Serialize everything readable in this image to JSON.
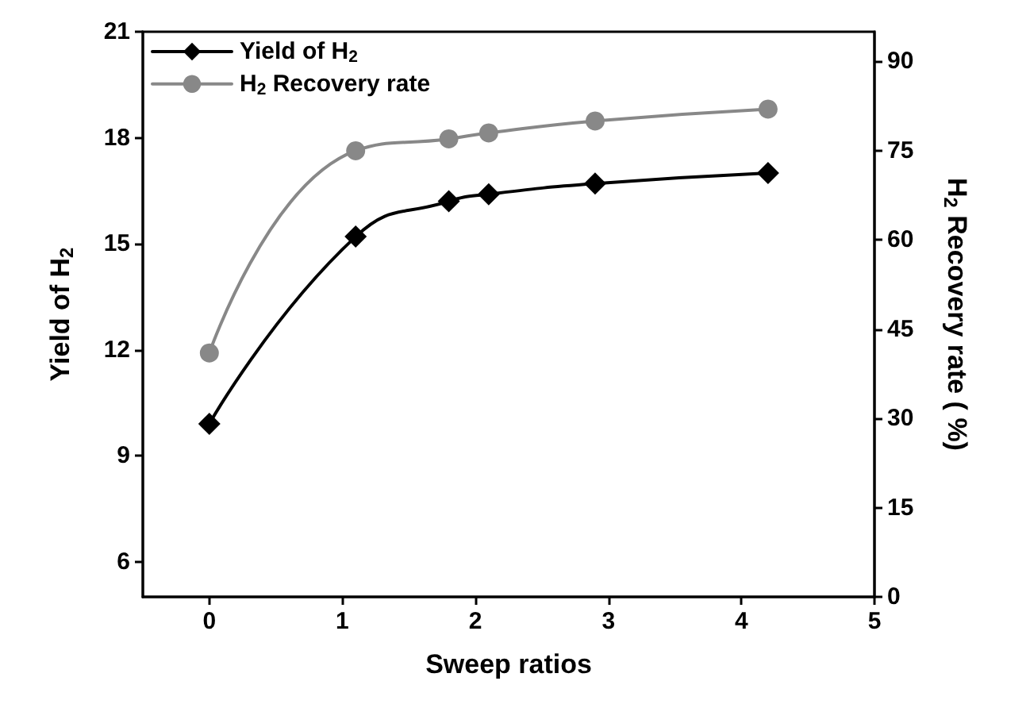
{
  "chart_data": {
    "type": "line",
    "xlabel": "Sweep ratios",
    "ylabel": "Yield of H$_{2}$",
    "y2label": "H$_{2}$ Recovery rate ( %)",
    "xlim": [
      -0.5,
      5
    ],
    "xticks": [
      0,
      1,
      2,
      3,
      4,
      5
    ],
    "ylim": [
      5,
      21
    ],
    "yticks": [
      6,
      9,
      12,
      15,
      18,
      21
    ],
    "y2lim": [
      0,
      95
    ],
    "y2ticks": [
      0,
      15,
      30,
      45,
      60,
      75,
      90
    ],
    "series": [
      {
        "name": "Yield of H$_{2}$",
        "color": "#000000",
        "marker": "diamond",
        "x": [
          0,
          1.1,
          1.8,
          2.1,
          2.9,
          4.2
        ],
        "values": [
          9.9,
          15.2,
          16.2,
          16.4,
          16.7,
          17.0
        ]
      },
      {
        "name": "H$_{2}$ Recovery rate",
        "color": "#888888",
        "marker": "circle",
        "axis": "y2",
        "x": [
          0,
          1.1,
          1.8,
          2.1,
          2.9,
          4.2
        ],
        "values": [
          41,
          75,
          77,
          78,
          80,
          82
        ]
      }
    ],
    "legend": "top left",
    "grid": false,
    "line_style": "solid"
  }
}
